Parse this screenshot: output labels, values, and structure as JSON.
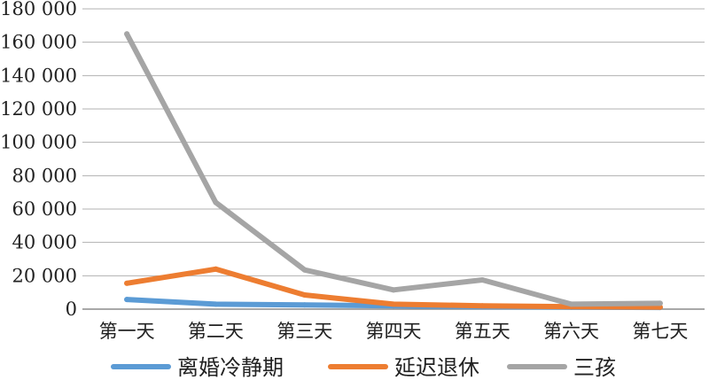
{
  "chart_data": {
    "type": "line",
    "title": "",
    "xlabel": "",
    "ylabel": "",
    "categories": [
      "第一天",
      "第二天",
      "第三天",
      "第四天",
      "第五天",
      "第六天",
      "第七天"
    ],
    "ylim": [
      0,
      180000
    ],
    "ytick_values": [
      0,
      20000,
      40000,
      60000,
      80000,
      100000,
      120000,
      140000,
      160000,
      180000
    ],
    "ytick_labels": [
      "0",
      "20 000",
      "40 000",
      "60 000",
      "80 000",
      "100 000",
      "120 000",
      "140 000",
      "160 000",
      "180 000"
    ],
    "grid": "horizontal",
    "legend_position": "bottom",
    "series": [
      {
        "name": "离婚冷静期",
        "color": "#5b9bd5",
        "values": [
          5800,
          3000,
          2500,
          2000,
          1500,
          1200,
          1000
        ]
      },
      {
        "name": "延迟退休",
        "color": "#ed7d31",
        "values": [
          15500,
          24000,
          8500,
          3000,
          2000,
          1500,
          1200
        ]
      },
      {
        "name": "三孩",
        "color": "#a5a5a5",
        "values": [
          165000,
          64000,
          23500,
          11500,
          17500,
          3000,
          3500
        ]
      }
    ]
  }
}
